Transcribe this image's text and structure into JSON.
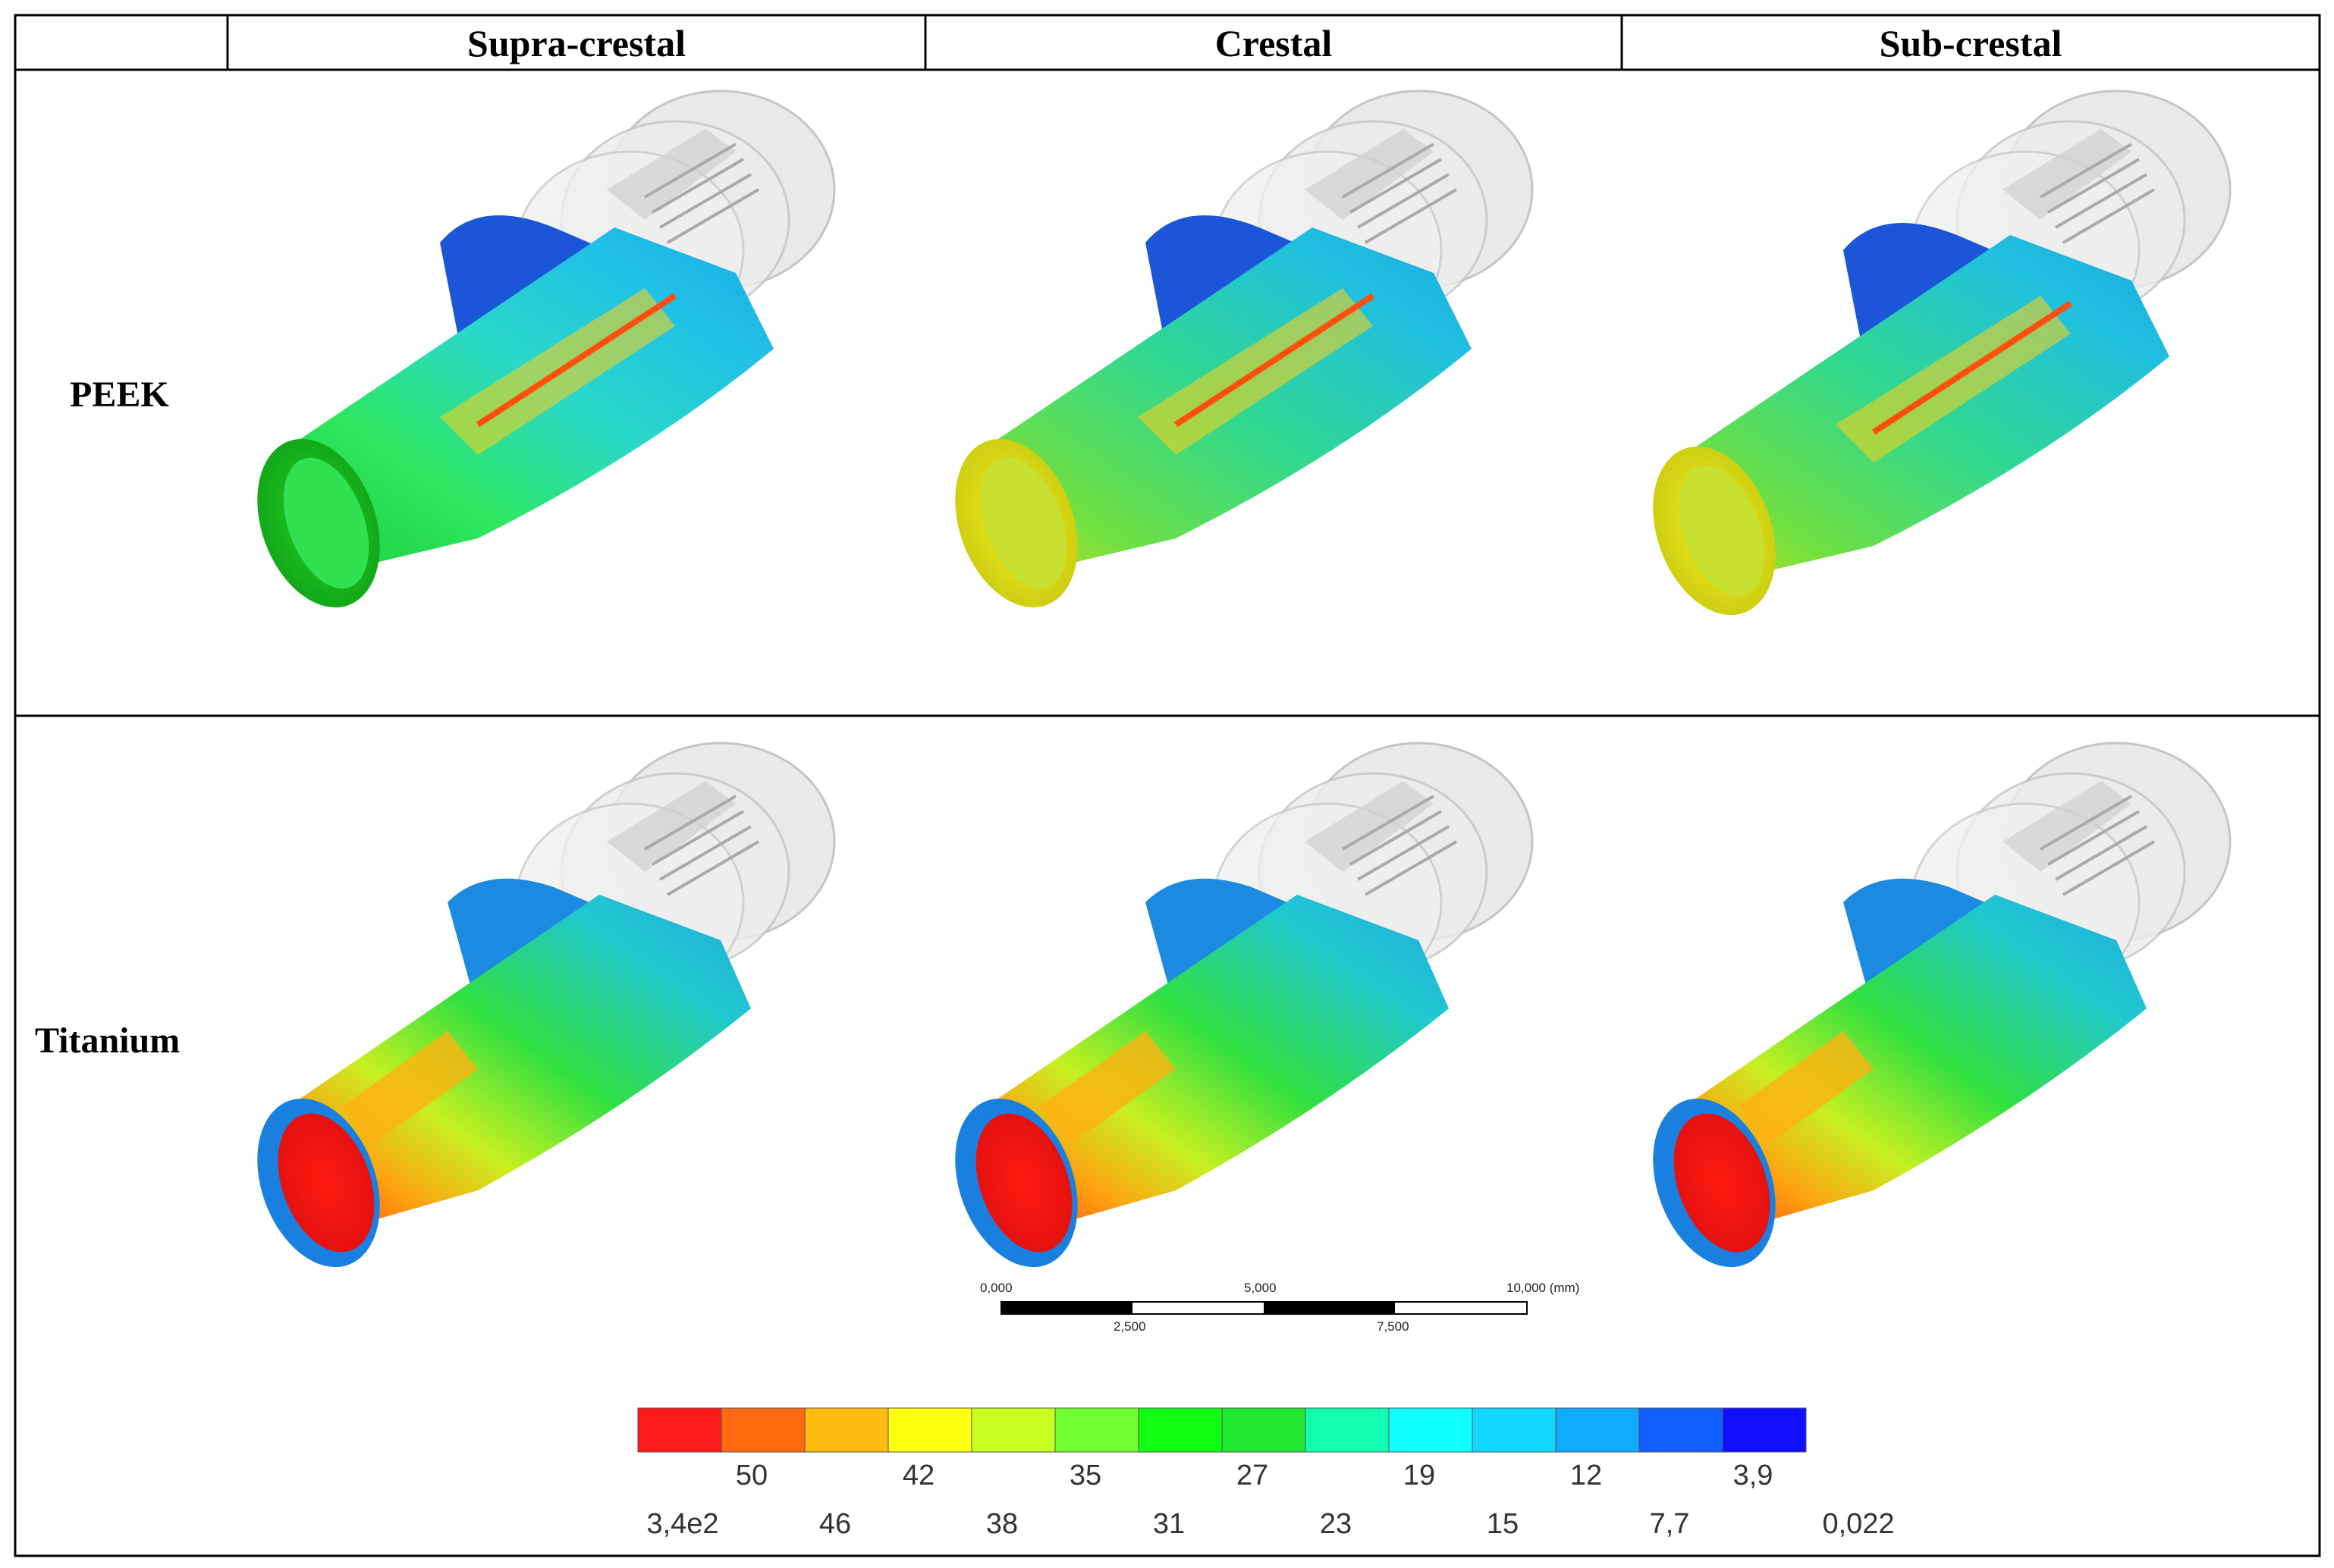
{
  "header": {
    "columns": [
      "Supra-crestal",
      "Crestal",
      "Sub-crestal"
    ]
  },
  "rows": [
    "PEEK",
    "Titanium"
  ],
  "scale_bar": {
    "top_labels": [
      "0,000",
      "5,000",
      "10,000 (mm)"
    ],
    "bottom_labels": [
      "2,500",
      "7,500"
    ]
  },
  "legend": {
    "colors": [
      "#ff1a1a",
      "#ff6a10",
      "#ffbb10",
      "#ffff10",
      "#c8ff20",
      "#70ff30",
      "#10ff10",
      "#20e830",
      "#10ffb0",
      "#10ffff",
      "#10d8ff",
      "#10aaff",
      "#1060ff",
      "#1010ff"
    ],
    "upper_labels": [
      "50",
      "42",
      "35",
      "27",
      "19",
      "12",
      "3,9"
    ],
    "lower_labels": [
      "3,4e2",
      "46",
      "38",
      "31",
      "23",
      "15",
      "7,7",
      "0,022"
    ]
  },
  "colors": {
    "grid_line": "#000000",
    "implant_peek": "#10c8e8",
    "implant_titanium": "#18e040"
  }
}
